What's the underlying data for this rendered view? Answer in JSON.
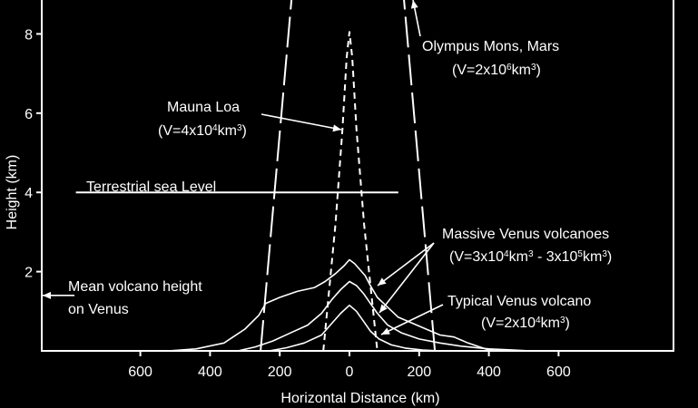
{
  "chart_data": {
    "type": "line",
    "title": "",
    "xlabel": "Horizontal Distance (km)",
    "ylabel": "Height (km)",
    "xlim": [
      -750,
      750
    ],
    "ylim": [
      0,
      8.6
    ],
    "x_ticks": [
      {
        "value": -600,
        "label": "600"
      },
      {
        "value": -400,
        "label": "400"
      },
      {
        "value": -200,
        "label": "200"
      },
      {
        "value": 0,
        "label": "0"
      },
      {
        "value": 200,
        "label": "200"
      },
      {
        "value": 400,
        "label": "400"
      },
      {
        "value": 600,
        "label": "600"
      }
    ],
    "y_ticks": [
      {
        "value": 2,
        "label": "2"
      },
      {
        "value": 4,
        "label": "4"
      },
      {
        "value": 6,
        "label": "6"
      },
      {
        "value": 8,
        "label": "8"
      }
    ],
    "grid": false,
    "series": [
      {
        "name": "Olympus Mons, Mars",
        "style": "long-dash",
        "left": [
          [
            -255,
            0
          ],
          [
            -155,
            10
          ]
        ],
        "right": [
          [
            245,
            0
          ],
          [
            145,
            10
          ]
        ]
      },
      {
        "name": "Mauna Loa",
        "style": "short-dash",
        "points": [
          [
            -75,
            0
          ],
          [
            -40,
            3.2
          ],
          [
            -20,
            5.6
          ],
          [
            -8,
            7.4
          ],
          [
            0,
            8.05
          ],
          [
            8,
            7.4
          ],
          [
            20,
            5.6
          ],
          [
            42,
            3.2
          ],
          [
            80,
            0
          ]
        ]
      },
      {
        "name": "Sea level",
        "style": "solid",
        "points": [
          [
            -785,
            4
          ],
          [
            140,
            4
          ]
        ]
      },
      {
        "name": "Massive Venus volcano (larger)",
        "style": "solid",
        "points": [
          [
            -520,
            0
          ],
          [
            -440,
            0.05
          ],
          [
            -360,
            0.2
          ],
          [
            -300,
            0.55
          ],
          [
            -260,
            0.9
          ],
          [
            -240,
            1.2
          ],
          [
            -200,
            1.35
          ],
          [
            -150,
            1.5
          ],
          [
            -100,
            1.6
          ],
          [
            -70,
            1.75
          ],
          [
            -40,
            1.95
          ],
          [
            -15,
            2.15
          ],
          [
            0,
            2.3
          ],
          [
            15,
            2.2
          ],
          [
            30,
            2.05
          ],
          [
            45,
            1.9
          ],
          [
            60,
            1.65
          ],
          [
            80,
            1.35
          ],
          [
            110,
            1.1
          ],
          [
            140,
            0.85
          ],
          [
            180,
            0.7
          ],
          [
            220,
            0.55
          ],
          [
            260,
            0.4
          ],
          [
            300,
            0.35
          ],
          [
            340,
            0.2
          ],
          [
            390,
            0.05
          ],
          [
            420,
            0
          ]
        ]
      },
      {
        "name": "Massive Venus volcano (smaller)",
        "style": "solid",
        "points": [
          [
            -320,
            0
          ],
          [
            -270,
            0.1
          ],
          [
            -220,
            0.25
          ],
          [
            -170,
            0.45
          ],
          [
            -120,
            0.65
          ],
          [
            -80,
            0.95
          ],
          [
            -50,
            1.3
          ],
          [
            -25,
            1.55
          ],
          [
            0,
            1.75
          ],
          [
            20,
            1.65
          ],
          [
            40,
            1.45
          ],
          [
            60,
            1.2
          ],
          [
            80,
            0.95
          ],
          [
            110,
            0.65
          ],
          [
            150,
            0.45
          ],
          [
            200,
            0.3
          ],
          [
            260,
            0.2
          ],
          [
            320,
            0.12
          ],
          [
            400,
            0.05
          ],
          [
            470,
            0.02
          ],
          [
            520,
            0
          ]
        ]
      },
      {
        "name": "Typical Venus volcano",
        "style": "solid",
        "points": [
          [
            -230,
            0
          ],
          [
            -180,
            0.08
          ],
          [
            -130,
            0.2
          ],
          [
            -80,
            0.4
          ],
          [
            -50,
            0.7
          ],
          [
            -25,
            0.95
          ],
          [
            0,
            1.15
          ],
          [
            20,
            1.0
          ],
          [
            40,
            0.75
          ],
          [
            60,
            0.5
          ],
          [
            85,
            0.3
          ],
          [
            120,
            0.15
          ],
          [
            160,
            0.07
          ],
          [
            210,
            0.02
          ],
          [
            260,
            0
          ]
        ]
      }
    ],
    "annotations": [
      {
        "line1": "Olympus Mons, Mars",
        "line2": "(V=2x10",
        "sup": "6",
        "tail": "km",
        "sup2": "3",
        "close": ")"
      },
      {
        "line1": "Mauna Loa",
        "line2": "(V=4x10",
        "sup": "4",
        "tail": "km",
        "sup2": "3",
        "close": ")"
      },
      {
        "line1": "Terrestrial sea Level"
      },
      {
        "line1": "Massive Venus volcanoes",
        "line2a": "(V=3x10",
        "supA": "4",
        "tailA": "km",
        "supA2": "3",
        "mid": " - 3x10",
        "supB": "5",
        "tailB": "km",
        "supB2": "3",
        "close": ")"
      },
      {
        "line1": "Typical Venus volcano",
        "line2": "(V=2x10",
        "sup": "4",
        "tail": "km",
        "sup2": "3",
        "close": ")"
      },
      {
        "line1": "Mean volcano height",
        "line2": "on Venus"
      }
    ],
    "mean_venus_height": 1.4
  }
}
